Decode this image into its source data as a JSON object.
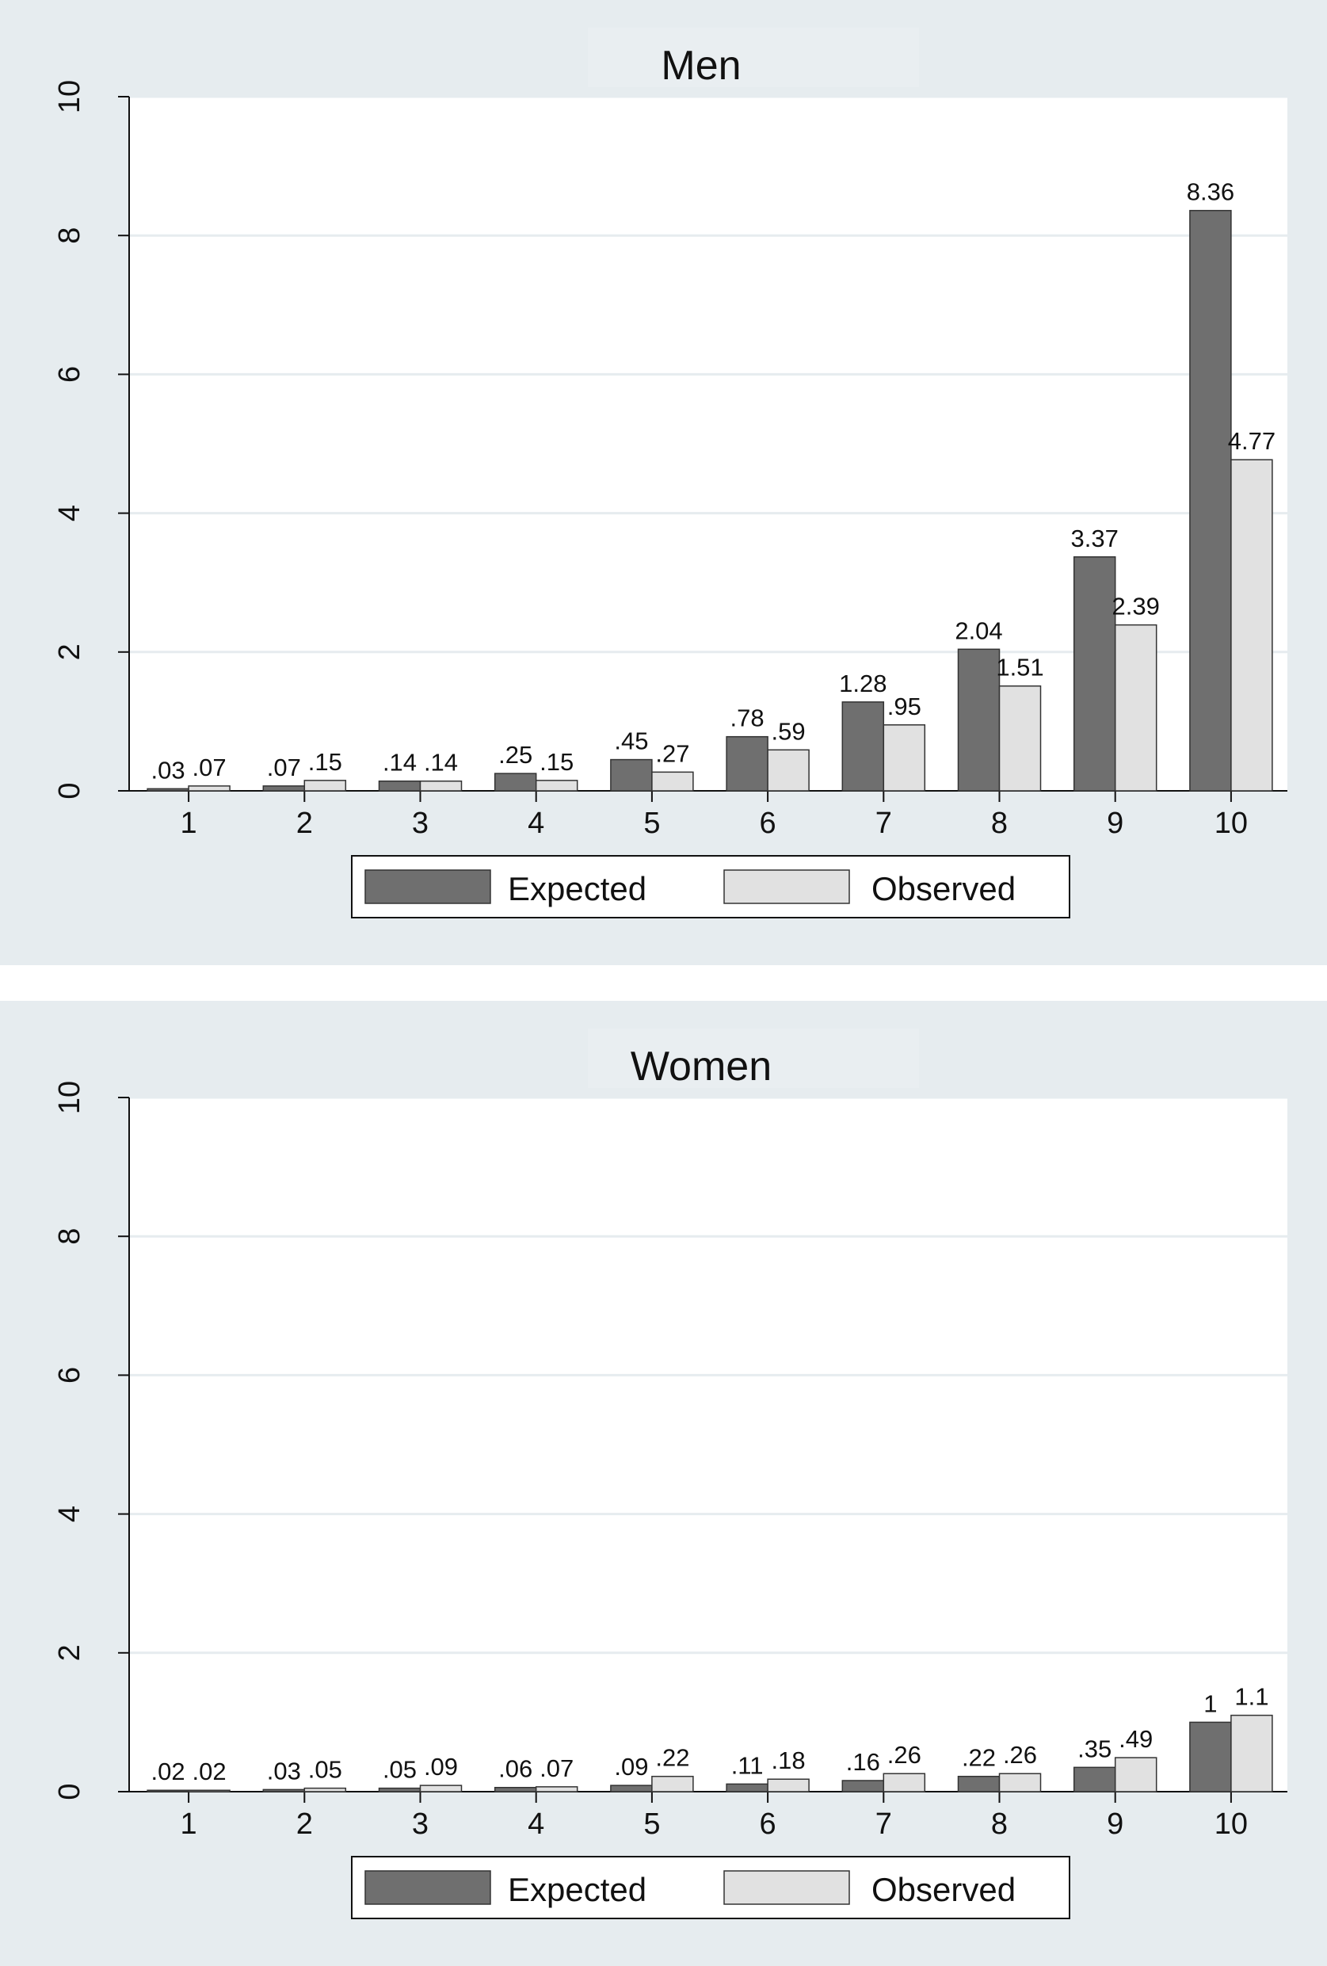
{
  "chart_data": [
    {
      "type": "bar",
      "title": "Men",
      "categories": [
        "1",
        "2",
        "3",
        "4",
        "5",
        "6",
        "7",
        "8",
        "9",
        "10"
      ],
      "series": [
        {
          "name": "Expected",
          "color": "#6f6f6f",
          "values": [
            0.03,
            0.07,
            0.14,
            0.25,
            0.45,
            0.78,
            1.28,
            2.04,
            3.37,
            8.36
          ],
          "labels": [
            ".03",
            ".07",
            ".14",
            ".25",
            ".45",
            ".78",
            "1.28",
            "2.04",
            "3.37",
            "8.36"
          ]
        },
        {
          "name": "Observed",
          "color": "#e1e1e1",
          "values": [
            0.07,
            0.15,
            0.14,
            0.15,
            0.27,
            0.59,
            0.95,
            1.51,
            2.39,
            4.77
          ],
          "labels": [
            ".07",
            ".15",
            ".14",
            ".15",
            ".27",
            ".59",
            ".95",
            "1.51",
            "2.39",
            "4.77"
          ]
        }
      ],
      "ylim": [
        0,
        10
      ],
      "yticks": [
        "0",
        "2",
        "4",
        "6",
        "8",
        "10"
      ],
      "grid": true,
      "legend": "bottom"
    },
    {
      "type": "bar",
      "title": "Women",
      "categories": [
        "1",
        "2",
        "3",
        "4",
        "5",
        "6",
        "7",
        "8",
        "9",
        "10"
      ],
      "series": [
        {
          "name": "Expected",
          "color": "#6f6f6f",
          "values": [
            0.02,
            0.03,
            0.05,
            0.06,
            0.09,
            0.11,
            0.16,
            0.22,
            0.35,
            1.0
          ],
          "labels": [
            ".02",
            ".03",
            ".05",
            ".06",
            ".09",
            ".11",
            ".16",
            ".22",
            ".35",
            "1"
          ]
        },
        {
          "name": "Observed",
          "color": "#e1e1e1",
          "values": [
            0.02,
            0.05,
            0.09,
            0.07,
            0.22,
            0.18,
            0.26,
            0.26,
            0.49,
            1.1
          ],
          "labels": [
            ".02",
            ".05",
            ".09",
            ".07",
            ".22",
            ".18",
            ".26",
            ".26",
            ".49",
            "1.1"
          ]
        }
      ],
      "ylim": [
        0,
        10
      ],
      "yticks": [
        "0",
        "2",
        "4",
        "6",
        "8",
        "10"
      ],
      "grid": true,
      "legend": "bottom"
    }
  ]
}
